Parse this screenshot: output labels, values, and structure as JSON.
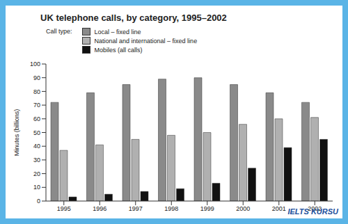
{
  "chart_data": {
    "type": "bar",
    "title": "UK telephone calls, by category, 1995–2002",
    "legend_title": "Call type:",
    "y_label": "Minutes (billions)",
    "annotations": [
      "IELTS KURSU"
    ],
    "categories": [
      "1995",
      "1996",
      "1997",
      "1998",
      "1999",
      "2000",
      "2001",
      "2002"
    ],
    "series": [
      {
        "name": "Local – fixed line",
        "color": "#8a8a8a",
        "values": [
          72,
          79,
          85,
          89,
          90,
          85,
          79,
          72
        ]
      },
      {
        "name": "National and international – fixed line",
        "color": "#b0b0b0",
        "values": [
          37,
          41,
          45,
          48,
          50,
          56,
          60,
          61
        ]
      },
      {
        "name": "Mobiles (all calls)",
        "color": "#111111",
        "values": [
          3,
          5,
          7,
          9,
          13,
          24,
          39,
          45
        ]
      }
    ],
    "ylim": [
      0,
      100
    ],
    "yticks": [
      0,
      10,
      20,
      30,
      40,
      50,
      60,
      70,
      80,
      90,
      100
    ],
    "grid": false,
    "legend": "upper left"
  }
}
